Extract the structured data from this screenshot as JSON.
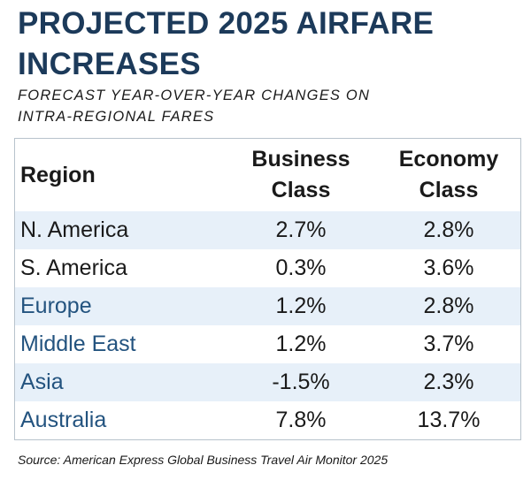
{
  "title_line1": "PROJECTED 2025 AIRFARE",
  "title_line2": "INCREASES",
  "subtitle_line1": "FORECAST YEAR-OVER-YEAR CHANGES ON",
  "subtitle_line2": "INTRA-REGIONAL FARES",
  "table": {
    "headers": {
      "region": "Region",
      "business_line1": "Business",
      "business_line2": "Class",
      "economy_line1": "Economy",
      "economy_line2": "Class"
    },
    "rows": [
      {
        "region": "N. America",
        "business": "2.7%",
        "economy": "2.8%"
      },
      {
        "region": "S. America",
        "business": "0.3%",
        "economy": "3.6%"
      },
      {
        "region": "Europe",
        "business": "1.2%",
        "economy": "2.8%"
      },
      {
        "region": "Middle East",
        "business": "1.2%",
        "economy": "3.7%"
      },
      {
        "region": "Asia",
        "business": "-1.5%",
        "economy": "2.3%"
      },
      {
        "region": "Australia",
        "business": "7.8%",
        "economy": "13.7%"
      }
    ]
  },
  "source": "Source: American Express Global Business Travel Air Monitor 2025",
  "colors": {
    "title": "#1c3a5a",
    "row_shade": "#e7f0f9",
    "region_accent": "#23537f",
    "border": "#b8c3cc"
  }
}
